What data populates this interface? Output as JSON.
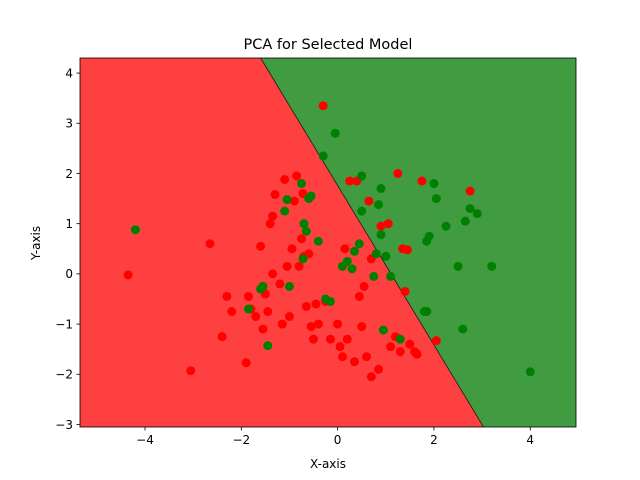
{
  "chart_data": {
    "type": "scatter",
    "title": "PCA for Selected Model",
    "xlabel": "X-axis",
    "ylabel": "Y-axis",
    "xlim": [
      -5.35,
      4.95
    ],
    "ylim": [
      -3.05,
      4.3
    ],
    "xticks": [
      -4,
      -2,
      0,
      2,
      4
    ],
    "yticks": [
      -3,
      -2,
      -1,
      0,
      1,
      2,
      3,
      4
    ],
    "grid": false,
    "legend": "none",
    "decision_regions": {
      "boundary_line": [
        [
          -1.6,
          4.3
        ],
        [
          3.03,
          -3.05
        ]
      ],
      "left_region_color": "#ff4040",
      "right_region_color": "#419c41"
    },
    "series": [
      {
        "color": "#ff0000",
        "points": [
          [
            -4.35,
            -0.02
          ],
          [
            -3.05,
            -1.93
          ],
          [
            -2.65,
            0.6
          ],
          [
            -2.4,
            -1.25
          ],
          [
            -2.3,
            -0.45
          ],
          [
            -2.2,
            -0.75
          ],
          [
            -1.9,
            -1.77
          ],
          [
            -1.85,
            -0.45
          ],
          [
            -1.8,
            -0.7
          ],
          [
            -1.7,
            -0.85
          ],
          [
            -1.6,
            0.55
          ],
          [
            -1.55,
            -1.1
          ],
          [
            -1.5,
            -0.4
          ],
          [
            -1.45,
            -0.75
          ],
          [
            -1.4,
            1.0
          ],
          [
            -1.35,
            1.15
          ],
          [
            -1.3,
            1.58
          ],
          [
            -1.35,
            0.0
          ],
          [
            -1.2,
            -0.2
          ],
          [
            -1.15,
            -1.0
          ],
          [
            -1.1,
            1.88
          ],
          [
            -1.05,
            0.15
          ],
          [
            -1.0,
            -0.85
          ],
          [
            -0.95,
            0.5
          ],
          [
            -0.9,
            1.45
          ],
          [
            -0.85,
            1.95
          ],
          [
            -0.8,
            0.15
          ],
          [
            -0.75,
            0.7
          ],
          [
            -0.72,
            1.6
          ],
          [
            -0.7,
            0.35
          ],
          [
            -0.65,
            -0.65
          ],
          [
            -0.6,
            0.4
          ],
          [
            -0.55,
            -1.05
          ],
          [
            -0.5,
            -1.3
          ],
          [
            -0.45,
            -0.6
          ],
          [
            -0.3,
            3.35
          ],
          [
            -0.25,
            -0.55
          ],
          [
            -0.15,
            -1.3
          ],
          [
            0.0,
            -1.0
          ],
          [
            0.05,
            -1.45
          ],
          [
            0.1,
            -1.65
          ],
          [
            0.15,
            0.5
          ],
          [
            0.2,
            -1.3
          ],
          [
            0.25,
            1.85
          ],
          [
            0.35,
            -1.75
          ],
          [
            0.4,
            1.85
          ],
          [
            0.45,
            -0.45
          ],
          [
            0.5,
            -1.05
          ],
          [
            0.55,
            -0.25
          ],
          [
            0.6,
            -1.65
          ],
          [
            0.65,
            1.45
          ],
          [
            0.7,
            0.3
          ],
          [
            0.7,
            -2.05
          ],
          [
            0.85,
            -1.9
          ],
          [
            0.9,
            0.95
          ],
          [
            1.05,
            1.0
          ],
          [
            1.1,
            -1.45
          ],
          [
            1.2,
            -1.25
          ],
          [
            1.25,
            2.0
          ],
          [
            1.3,
            -1.55
          ],
          [
            1.35,
            0.5
          ],
          [
            1.4,
            -0.35
          ],
          [
            1.45,
            0.48
          ],
          [
            1.5,
            -1.4
          ],
          [
            1.6,
            -1.55
          ],
          [
            1.65,
            -1.6
          ],
          [
            1.75,
            1.85
          ],
          [
            2.05,
            -1.33
          ],
          [
            2.75,
            1.65
          ],
          [
            -0.4,
            -1.0
          ]
        ]
      },
      {
        "color": "#008000",
        "points": [
          [
            -4.2,
            0.88
          ],
          [
            -1.85,
            -0.7
          ],
          [
            -1.6,
            -0.3
          ],
          [
            -1.55,
            -0.25
          ],
          [
            -1.45,
            -1.43
          ],
          [
            -1.1,
            1.25
          ],
          [
            -1.05,
            1.48
          ],
          [
            -1.0,
            -0.25
          ],
          [
            -0.75,
            1.8
          ],
          [
            -0.72,
            0.3
          ],
          [
            -0.7,
            1.0
          ],
          [
            -0.65,
            0.85
          ],
          [
            -0.6,
            1.5
          ],
          [
            -0.55,
            1.55
          ],
          [
            -0.4,
            0.65
          ],
          [
            -0.3,
            2.35
          ],
          [
            -0.25,
            -0.5
          ],
          [
            -0.15,
            -0.55
          ],
          [
            -0.05,
            2.8
          ],
          [
            0.1,
            0.15
          ],
          [
            0.2,
            0.25
          ],
          [
            0.3,
            0.1
          ],
          [
            0.35,
            0.45
          ],
          [
            0.45,
            0.6
          ],
          [
            0.5,
            1.95
          ],
          [
            0.5,
            1.25
          ],
          [
            0.75,
            -0.05
          ],
          [
            0.8,
            0.4
          ],
          [
            0.85,
            1.38
          ],
          [
            0.9,
            1.7
          ],
          [
            0.9,
            0.78
          ],
          [
            0.95,
            -1.12
          ],
          [
            1.0,
            0.35
          ],
          [
            1.1,
            -0.05
          ],
          [
            1.3,
            -1.3
          ],
          [
            1.8,
            -0.75
          ],
          [
            1.85,
            -0.75
          ],
          [
            1.85,
            0.65
          ],
          [
            1.9,
            0.75
          ],
          [
            2.0,
            1.8
          ],
          [
            2.05,
            1.5
          ],
          [
            2.25,
            0.95
          ],
          [
            2.5,
            0.15
          ],
          [
            2.6,
            -1.1
          ],
          [
            2.65,
            1.05
          ],
          [
            2.75,
            1.3
          ],
          [
            2.9,
            1.2
          ],
          [
            3.2,
            0.15
          ],
          [
            4.0,
            -1.95
          ]
        ]
      }
    ]
  }
}
